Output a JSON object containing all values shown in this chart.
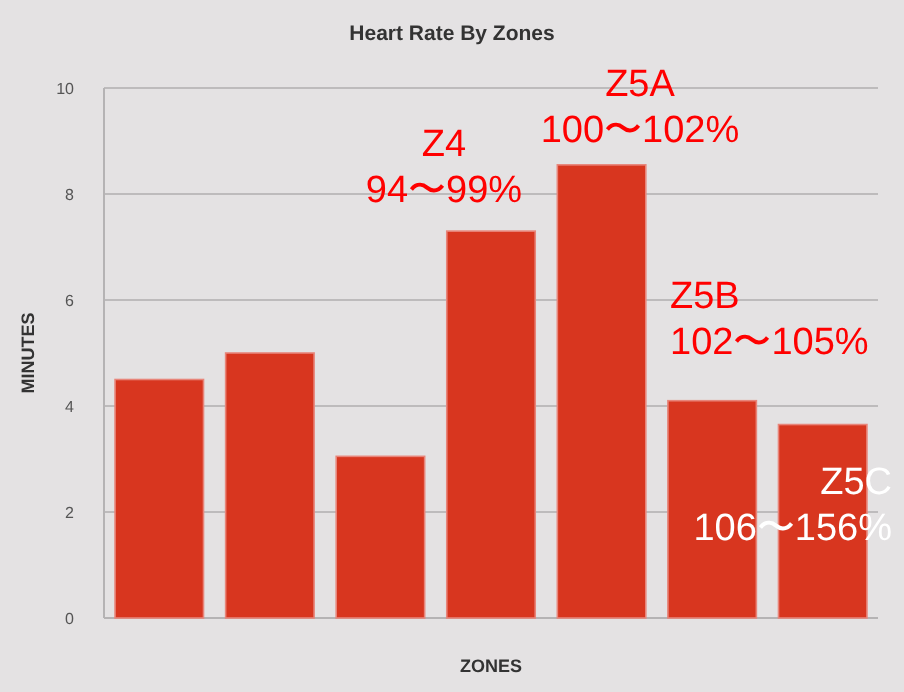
{
  "chart_data": {
    "type": "bar",
    "title": "Heart Rate By Zones",
    "xlabel": "ZONES",
    "ylabel": "MINUTES",
    "categories": [
      null,
      null,
      null,
      null,
      null,
      null,
      null
    ],
    "values": [
      4.5,
      5.0,
      3.05,
      7.3,
      8.55,
      4.1,
      3.65
    ],
    "color": "#d8361f",
    "ylim": [
      0,
      10
    ],
    "yticks": [
      0,
      2,
      4,
      6,
      8,
      10
    ],
    "grid": "y",
    "annotations": [
      "Z4\n94〜99%",
      "Z5A\n100〜102%",
      "Z5B\n102〜105%",
      "Z5C\n106〜156%"
    ]
  }
}
